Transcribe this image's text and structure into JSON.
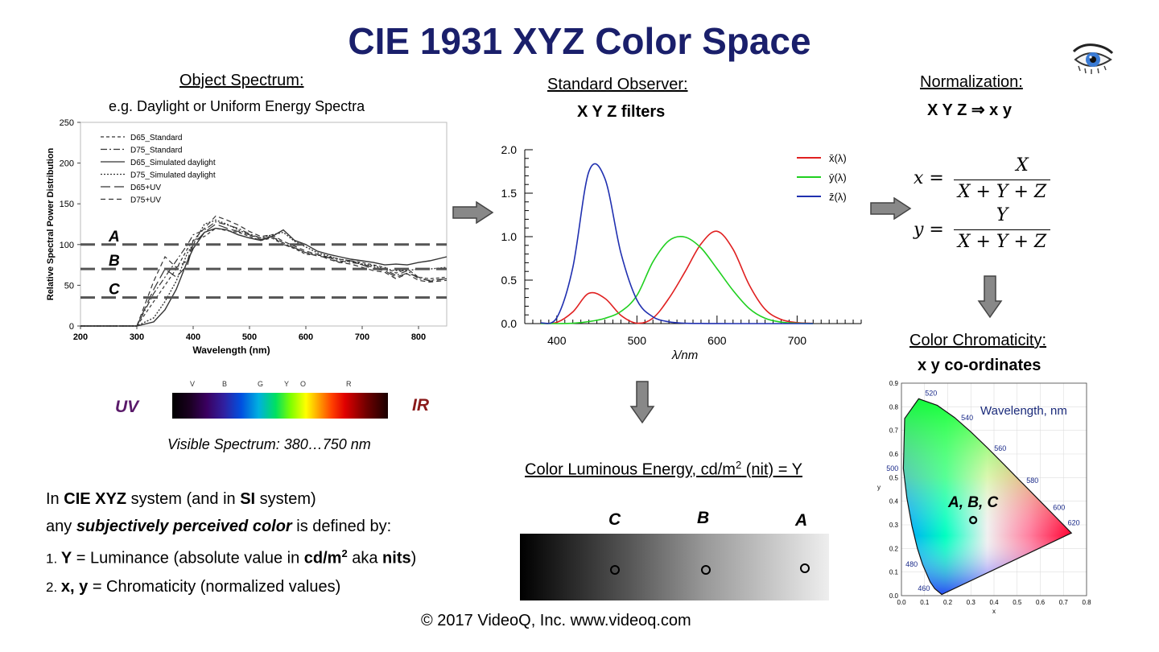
{
  "title": "CIE 1931 XYZ Color Space",
  "object_spectrum": {
    "heading": "Object Spectrum:",
    "subtitle": "e.g. Daylight or Uniform Energy Spectra",
    "levels": [
      "A",
      "B",
      "C"
    ]
  },
  "standard_observer": {
    "heading": "Standard Observer:",
    "subtitle": "X Y Z filters"
  },
  "normalization": {
    "heading": "Normalization:",
    "subtitle": "X Y Z ⇒ x y",
    "formula_x_lhs": "x =",
    "formula_y_lhs": "y =",
    "formula_x_num": "X",
    "formula_y_num": "Y",
    "formula_den": "X + Y + Z"
  },
  "chromaticity": {
    "heading": "Color Chromaticity:",
    "subtitle": "x y co-ordinates",
    "wavelength_label": "Wavelength, nm",
    "point_label": "A, B, C"
  },
  "visible_spectrum": {
    "uv": "UV",
    "ir": "IR",
    "caption": "Visible Spectrum: 380…750 nm",
    "band_letters": [
      "V",
      "B",
      "G",
      "Y",
      "O",
      "R"
    ]
  },
  "luminous": {
    "heading_pre": "Color Luminous Energy, cd/m",
    "heading_sup": "2",
    "heading_post": " (nit) = Y",
    "labels": [
      "C",
      "B",
      "A"
    ]
  },
  "description": {
    "line1": [
      "In ",
      "CIE XYZ",
      " system (and in ",
      "SI",
      " system)"
    ],
    "line2": [
      "any ",
      "subjectively perceived color",
      " is defined by:"
    ],
    "line3": [
      "1. ",
      "Y",
      " = Luminance (absolute value in ",
      "cd/m",
      "2",
      " aka ",
      "nits",
      ")"
    ],
    "line4": [
      "2. ",
      "x, y",
      " = Chromaticity (normalized values)"
    ]
  },
  "footer": "© 2017 VideoQ, Inc. www.videoq.com",
  "chart_data": [
    {
      "type": "line",
      "title": "",
      "xlabel": "Wavelength (nm)",
      "ylabel": "Relative Spectral Power Distribution",
      "xlim": [
        200,
        850
      ],
      "ylim": [
        0,
        250
      ],
      "x_ticks": [
        200,
        300,
        400,
        500,
        600,
        700,
        800
      ],
      "y_ticks": [
        0,
        50,
        100,
        150,
        200,
        250
      ],
      "legend": [
        "D65_Standard",
        "D75_Standard",
        "D65_Simulated daylight",
        "D75_Simulated daylight",
        "D65+UV",
        "D75+UV"
      ],
      "x": [
        200,
        300,
        330,
        350,
        370,
        390,
        400,
        420,
        440,
        460,
        480,
        500,
        520,
        540,
        560,
        580,
        600,
        620,
        640,
        660,
        680,
        700,
        720,
        740,
        760,
        780,
        800,
        820,
        850
      ],
      "series": [
        {
          "name": "D65_Standard",
          "values": [
            0,
            0,
            30,
            50,
            70,
            95,
            105,
            110,
            120,
            117,
            115,
            110,
            105,
            108,
            100,
            95,
            88,
            87,
            85,
            82,
            80,
            78,
            75,
            72,
            65,
            70,
            60,
            58,
            60
          ]
        },
        {
          "name": "D75_Standard",
          "values": [
            0,
            0,
            40,
            60,
            80,
            100,
            112,
            118,
            128,
            124,
            120,
            113,
            108,
            110,
            102,
            96,
            90,
            88,
            84,
            80,
            78,
            76,
            72,
            70,
            62,
            68,
            58,
            56,
            58
          ]
        },
        {
          "name": "D65_Simulated daylight",
          "values": [
            0,
            0,
            5,
            20,
            45,
            80,
            95,
            115,
            120,
            118,
            112,
            108,
            105,
            110,
            118,
            105,
            100,
            92,
            88,
            85,
            82,
            80,
            78,
            75,
            76,
            75,
            78,
            80,
            85
          ]
        },
        {
          "name": "D75_Simulated daylight",
          "values": [
            0,
            0,
            10,
            30,
            55,
            90,
            100,
            125,
            130,
            125,
            118,
            112,
            108,
            112,
            115,
            104,
            97,
            90,
            86,
            82,
            80,
            76,
            74,
            70,
            68,
            68,
            70,
            70,
            72
          ]
        },
        {
          "name": "D65+UV",
          "values": [
            0,
            0,
            45,
            70,
            60,
            75,
            100,
            115,
            125,
            120,
            116,
            112,
            106,
            110,
            100,
            96,
            90,
            86,
            84,
            78,
            80,
            75,
            70,
            68,
            60,
            65,
            60,
            55,
            58
          ]
        },
        {
          "name": "D75+UV",
          "values": [
            0,
            0,
            55,
            85,
            72,
            80,
            105,
            120,
            135,
            130,
            124,
            116,
            110,
            112,
            104,
            98,
            92,
            88,
            82,
            78,
            76,
            72,
            68,
            66,
            58,
            64,
            56,
            54,
            56
          ]
        }
      ],
      "levels": [
        {
          "name": "A",
          "y": 100
        },
        {
          "name": "B",
          "y": 70
        },
        {
          "name": "C",
          "y": 35
        }
      ]
    },
    {
      "type": "line",
      "title": "",
      "xlabel": "λ/nm",
      "ylabel": "",
      "xlim": [
        360,
        780
      ],
      "ylim": [
        0,
        2.0
      ],
      "x_ticks": [
        400,
        500,
        600,
        700
      ],
      "y_ticks": [
        0.0,
        0.5,
        1.0,
        1.5,
        2.0
      ],
      "legend": [
        "x̄(λ)",
        "ȳ(λ)",
        "z̄(λ)"
      ],
      "x": [
        380,
        400,
        420,
        440,
        460,
        480,
        500,
        520,
        540,
        560,
        580,
        600,
        620,
        640,
        660,
        680,
        700,
        720
      ],
      "series": [
        {
          "name": "x̄(λ)",
          "color": "#e02020",
          "values": [
            0.0014,
            0.0143,
            0.1344,
            0.3483,
            0.2908,
            0.0956,
            0.0049,
            0.0633,
            0.2904,
            0.5945,
            0.9163,
            1.0622,
            0.8544,
            0.4479,
            0.1649,
            0.0468,
            0.0114,
            0.0029
          ]
        },
        {
          "name": "ȳ(λ)",
          "color": "#20d020",
          "values": [
            0.0,
            0.0004,
            0.004,
            0.023,
            0.06,
            0.139,
            0.323,
            0.71,
            0.954,
            0.995,
            0.87,
            0.631,
            0.381,
            0.175,
            0.061,
            0.017,
            0.0041,
            0.001
          ]
        },
        {
          "name": "z̄(λ)",
          "color": "#2030b0",
          "values": [
            0.0065,
            0.0679,
            0.6456,
            1.7471,
            1.6692,
            0.813,
            0.272,
            0.0782,
            0.0203,
            0.0039,
            0.0017,
            0.0008,
            0.0002,
            0.0,
            0.0,
            0.0,
            0.0,
            0.0
          ]
        }
      ]
    },
    {
      "type": "scatter",
      "title": "",
      "xlabel": "x",
      "ylabel": "y",
      "xlim": [
        0,
        0.8
      ],
      "ylim": [
        0,
        0.9
      ],
      "x_ticks": [
        0.0,
        0.1,
        0.2,
        0.3,
        0.4,
        0.5,
        0.6,
        0.7,
        0.8
      ],
      "y_ticks": [
        0.0,
        0.1,
        0.2,
        0.3,
        0.4,
        0.5,
        0.6,
        0.7,
        0.8,
        0.9
      ],
      "locus_labels": [
        {
          "nm": "460",
          "x": 0.144,
          "y": 0.03
        },
        {
          "nm": "480",
          "x": 0.091,
          "y": 0.133
        },
        {
          "nm": "500",
          "x": 0.008,
          "y": 0.538
        },
        {
          "nm": "520",
          "x": 0.074,
          "y": 0.834
        },
        {
          "nm": "540",
          "x": 0.23,
          "y": 0.754
        },
        {
          "nm": "560",
          "x": 0.373,
          "y": 0.624
        },
        {
          "nm": "580",
          "x": 0.512,
          "y": 0.487
        },
        {
          "nm": "600",
          "x": 0.627,
          "y": 0.373
        },
        {
          "nm": "620",
          "x": 0.691,
          "y": 0.308
        }
      ],
      "locus": [
        [
          0.1741,
          0.005
        ],
        [
          0.144,
          0.0297
        ],
        [
          0.1241,
          0.0578
        ],
        [
          0.0913,
          0.1327
        ],
        [
          0.0687,
          0.2007
        ],
        [
          0.0454,
          0.295
        ],
        [
          0.0235,
          0.4127
        ],
        [
          0.0082,
          0.5384
        ],
        [
          0.0139,
          0.7502
        ],
        [
          0.0743,
          0.8338
        ],
        [
          0.1547,
          0.8059
        ],
        [
          0.2296,
          0.7543
        ],
        [
          0.3016,
          0.6923
        ],
        [
          0.3731,
          0.6245
        ],
        [
          0.4441,
          0.5547
        ],
        [
          0.5125,
          0.4866
        ],
        [
          0.5752,
          0.4242
        ],
        [
          0.627,
          0.3725
        ],
        [
          0.6658,
          0.334
        ],
        [
          0.6915,
          0.3083
        ],
        [
          0.7347,
          0.2653
        ]
      ],
      "points": [
        {
          "label": "A, B, C",
          "x": 0.31,
          "y": 0.32
        }
      ]
    }
  ]
}
